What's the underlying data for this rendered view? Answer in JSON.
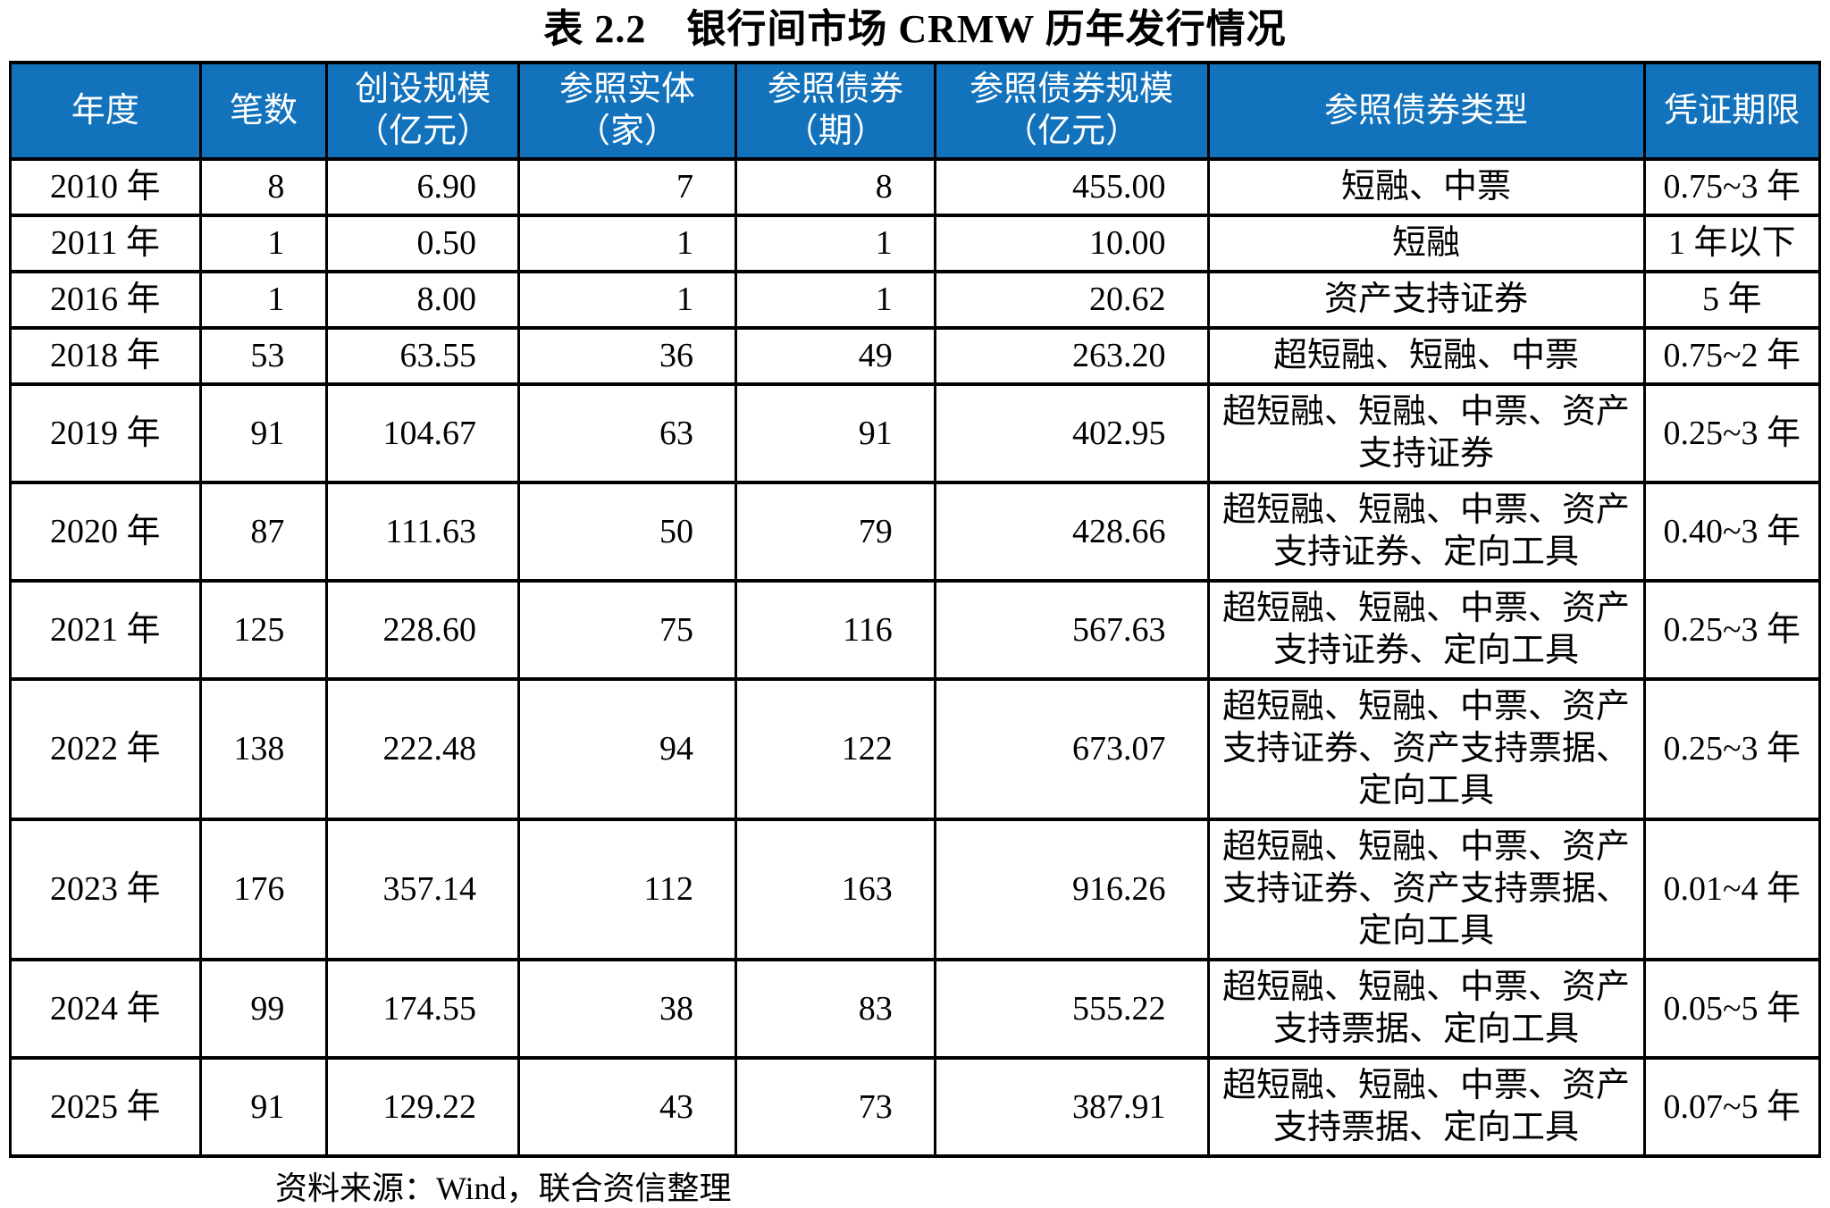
{
  "title": "表 2.2　银行间市场 CRMW 历年发行情况",
  "source_note": "资料来源：Wind，联合资信整理",
  "colors": {
    "header_bg": "#1272BC",
    "header_text": "#FFFFFF",
    "border": "#000000",
    "body_text": "#000000"
  },
  "table": {
    "columns": [
      {
        "key": "year",
        "label": "年度",
        "align": "center",
        "width": "10.5%"
      },
      {
        "key": "count",
        "label": "笔数",
        "align": "right",
        "width": "7%"
      },
      {
        "key": "creation-scale",
        "label": "创设规模\n（亿元）",
        "align": "right",
        "width": "10.6%"
      },
      {
        "key": "reference-entities",
        "label": "参照实体\n（家）",
        "align": "right",
        "width": "12%"
      },
      {
        "key": "reference-bonds",
        "label": "参照债券\n（期）",
        "align": "right",
        "width": "11%"
      },
      {
        "key": "reference-bond-scale",
        "label": "参照债券规模\n（亿元）",
        "align": "right",
        "width": "15.1%"
      },
      {
        "key": "reference-bond-type",
        "label": "参照债券类型",
        "align": "center",
        "width": "24.1%"
      },
      {
        "key": "certificate-term",
        "label": "凭证期限",
        "align": "center",
        "width": "9.7%"
      }
    ],
    "rows": [
      [
        "2010 年",
        "8",
        "6.90",
        "7",
        "8",
        "455.00",
        "短融、中票",
        "0.75~3 年"
      ],
      [
        "2011 年",
        "1",
        "0.50",
        "1",
        "1",
        "10.00",
        "短融",
        "1 年以下"
      ],
      [
        "2016 年",
        "1",
        "8.00",
        "1",
        "1",
        "20.62",
        "资产支持证券",
        "5 年"
      ],
      [
        "2018 年",
        "53",
        "63.55",
        "36",
        "49",
        "263.20",
        "超短融、短融、中票",
        "0.75~2 年"
      ],
      [
        "2019 年",
        "91",
        "104.67",
        "63",
        "91",
        "402.95",
        "超短融、短融、中票、资产支持证券",
        "0.25~3 年"
      ],
      [
        "2020 年",
        "87",
        "111.63",
        "50",
        "79",
        "428.66",
        "超短融、短融、中票、资产支持证券、定向工具",
        "0.40~3 年"
      ],
      [
        "2021 年",
        "125",
        "228.60",
        "75",
        "116",
        "567.63",
        "超短融、短融、中票、资产支持证券、定向工具",
        "0.25~3 年"
      ],
      [
        "2022 年",
        "138",
        "222.48",
        "94",
        "122",
        "673.07",
        "超短融、短融、中票、资产支持证券、资产支持票据、定向工具",
        "0.25~3 年"
      ],
      [
        "2023 年",
        "176",
        "357.14",
        "112",
        "163",
        "916.26",
        "超短融、短融、中票、资产支持证券、资产支持票据、定向工具",
        "0.01~4 年"
      ],
      [
        "2024 年",
        "99",
        "174.55",
        "38",
        "83",
        "555.22",
        "超短融、短融、中票、资产支持票据、定向工具",
        "0.05~5 年"
      ],
      [
        "2025 年",
        "91",
        "129.22",
        "43",
        "73",
        "387.91",
        "超短融、短融、中票、资产支持票据、定向工具",
        "0.07~5 年"
      ]
    ]
  }
}
